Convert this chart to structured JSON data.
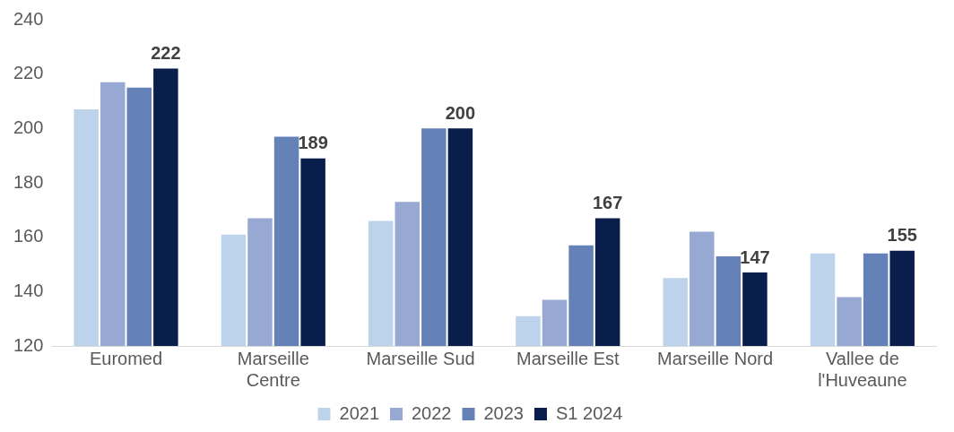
{
  "chart_data": {
    "type": "bar",
    "categories": [
      "Euromed",
      "Marseille Centre",
      "Marseille Sud",
      "Marseille Est",
      "Marseille Nord",
      "Vallee de l'Huveaune"
    ],
    "series": [
      {
        "name": "2021",
        "color": "#bdd3ec",
        "values": [
          207,
          161,
          166,
          131,
          145,
          154
        ]
      },
      {
        "name": "2022",
        "color": "#97a9d2",
        "values": [
          217,
          167,
          173,
          137,
          162,
          138
        ]
      },
      {
        "name": "2023",
        "color": "#6482b8",
        "values": [
          215,
          197,
          200,
          157,
          153,
          154
        ]
      },
      {
        "name": "S1 2024",
        "color": "#0a1e4b",
        "values": [
          222,
          189,
          200,
          167,
          147,
          155
        ],
        "value_labels": [
          "222",
          "189",
          "200",
          "167",
          "147",
          "155"
        ]
      }
    ],
    "ylim": [
      120,
      240
    ],
    "yticks": [
      120,
      140,
      160,
      180,
      200,
      220,
      240
    ],
    "grid": false,
    "legend": "bottom"
  }
}
